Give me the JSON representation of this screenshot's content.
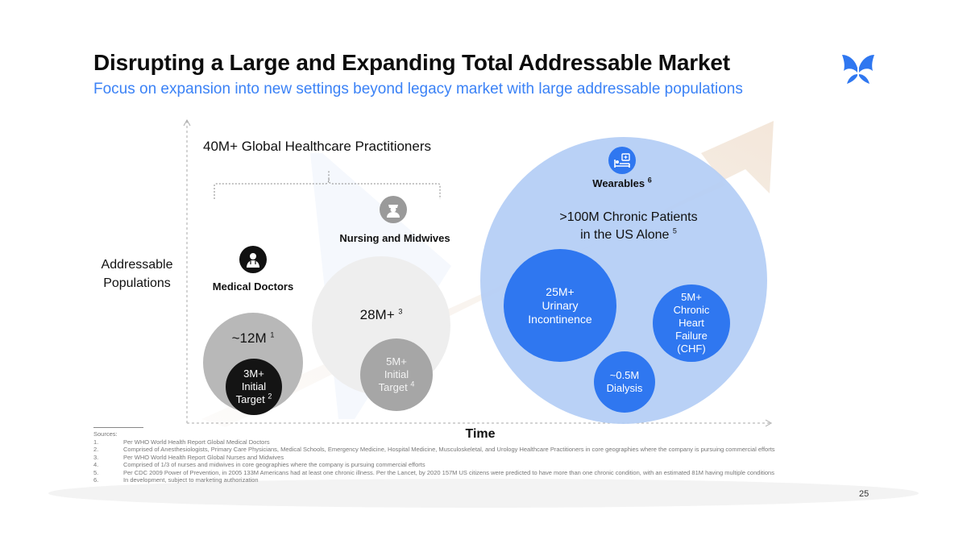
{
  "header": {
    "title": "Disrupting a Large and Expanding Total Addressable Market",
    "subtitle": "Focus on expansion into new settings beyond legacy market with large addressable populations",
    "logo_icon": "butterfly-logo-icon",
    "brand_color": "#2f77f0"
  },
  "diagram": {
    "practitioners_heading": "40M+ Global Healthcare Practitioners",
    "y_axis_label_line1": "Addressable",
    "y_axis_label_line2": "Populations",
    "x_axis_label": "Time",
    "doctors": {
      "icon": "doctor-icon",
      "label": "Medical Doctors",
      "total": "~12M",
      "total_ref": "1",
      "target_line1": "3M+",
      "target_line2": "Initial",
      "target_line3": "Target",
      "target_ref": "2"
    },
    "nursing": {
      "icon": "nurse-icon",
      "label": "Nursing and Midwives",
      "total": "28M+",
      "total_ref": "3",
      "target_line1": "5M+",
      "target_line2": "Initial",
      "target_line3": "Target",
      "target_ref": "4"
    },
    "wearables": {
      "icon": "hospital-bed-icon",
      "label": "Wearables",
      "label_ref": "6",
      "chronic_line1": ">100M Chronic Patients",
      "chronic_line2": "in the US Alone",
      "chronic_ref": "5",
      "urinary_line1": "25M+",
      "urinary_line2": "Urinary",
      "urinary_line3": "Incontinence",
      "chf_line1": "5M+",
      "chf_line2": "Chronic",
      "chf_line3": "Heart",
      "chf_line4": "Failure",
      "chf_line5": "(CHF)",
      "dialysis_line1": "~0.5M",
      "dialysis_line2": "Dialysis"
    }
  },
  "sources": {
    "heading": "Sources:",
    "items": [
      {
        "num": "1.",
        "text": "Per WHO World Health Report Global Medical Doctors"
      },
      {
        "num": "2.",
        "text": "Comprised of Anesthesiologists, Primary Care Physicians, Medical Schools, Emergency Medicine, Hospital Medicine, Musculoskeletal, and Urology Healthcare Practitioners in core geographies where the company is pursuing commercial efforts"
      },
      {
        "num": "3.",
        "text": "Per WHO World Health Report Global Nurses and Midwives"
      },
      {
        "num": "4.",
        "text": "Comprised of 1/3 of nurses and midwives in core geographies where the company is pursuing commercial efforts"
      },
      {
        "num": "5.",
        "text": "Per CDC 2009 Power of Prevention, in 2005 133M Americans had at least one chronic illness.  Per the Lancet, by 2020 157M US citizens were predicted to have more than one chronic condition, with an estimated 81M having multiple conditions"
      },
      {
        "num": "6.",
        "text": "In development, subject to marketing authorization"
      }
    ]
  },
  "footer": {
    "page_number": "25"
  }
}
